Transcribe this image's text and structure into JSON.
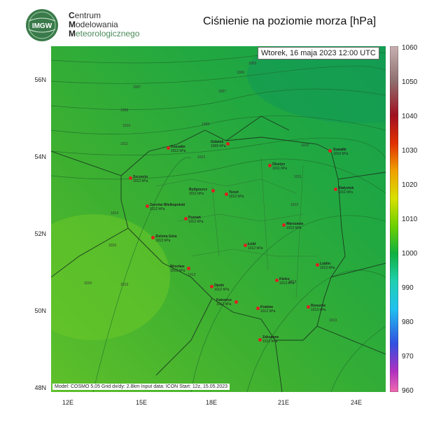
{
  "header": {
    "logo_text": "IMGW",
    "org_line1": "entrum",
    "org_line1_cap": "C",
    "org_line2": "odelowania",
    "org_line2_cap": "M",
    "org_line3": "eteorologicznego",
    "org_line3_cap": "M",
    "title": "Ciśnienie na poziomie morza [hPa]"
  },
  "map": {
    "datetime": "Wtorek, 16 maja 2023 12:00 UTC",
    "model_info": "Model: COSMO 5.05  Grid dx/dy: 2.8km  Input data: ICON  Start: 12z, 15.05.2023",
    "lat_labels": [
      "56N",
      "54N",
      "52N",
      "50N",
      "48N"
    ],
    "lon_labels": [
      "12E",
      "15E",
      "18E",
      "21E",
      "24E"
    ],
    "cities": [
      {
        "name": "Koszalin",
        "value": "1012 hPa"
      },
      {
        "name": "Gdańsk",
        "value": "1009 hPa"
      },
      {
        "name": "Suwałki",
        "value": "1010 hPa"
      },
      {
        "name": "Olsztyn",
        "value": "1011 hPa"
      },
      {
        "name": "Szczecin",
        "value": "1012 hPa"
      },
      {
        "name": "Bydgoszcz",
        "value": "1011 hPa"
      },
      {
        "name": "Toruń",
        "value": "1012 hPa"
      },
      {
        "name": "Białystok",
        "value": "1011 hPa"
      },
      {
        "name": "Gorzów Wielkopolski",
        "value": "1012 hPa"
      },
      {
        "name": "Poznań",
        "value": "1012 hPa"
      },
      {
        "name": "Warszawa",
        "value": "1012 hPa"
      },
      {
        "name": "Zielona Góra",
        "value": "1013 hPa"
      },
      {
        "name": "Łódź",
        "value": "1012 hPa"
      },
      {
        "name": "Lublin",
        "value": "1013 hPa"
      },
      {
        "name": "Wrocław",
        "value": "1013 hPa"
      },
      {
        "name": "Opole",
        "value": "1012 hPa"
      },
      {
        "name": "Kielce",
        "value": "1013 hPa"
      },
      {
        "name": "Katowice",
        "value": "1012 hPa"
      },
      {
        "name": "Kraków",
        "value": "1012 hPa"
      },
      {
        "name": "Rzeszów",
        "value": "1013 hPa"
      },
      {
        "name": "Zakopane",
        "value": "1012 hPa"
      }
    ],
    "isobar_labels": [
      "1005",
      "1006",
      "1007",
      "1007",
      "1008",
      "1009",
      "1010",
      "1010",
      "1011",
      "1011",
      "1012",
      "1012",
      "1013",
      "1013",
      "1013",
      "1013",
      "1014",
      "1015",
      "1016"
    ]
  },
  "colorbar": {
    "labels": [
      "1060",
      "1050",
      "1040",
      "1030",
      "1020",
      "1010",
      "1000",
      "990",
      "980",
      "970",
      "960"
    ],
    "colors": [
      "#f06ab0",
      "#b030c0",
      "#3050e0",
      "#20c0f0",
      "#20d0b0",
      "#10b040",
      "#6cd000",
      "#d8e000",
      "#f0a000",
      "#e03000",
      "#a01020",
      "#907070",
      "#c8b0b0"
    ]
  }
}
